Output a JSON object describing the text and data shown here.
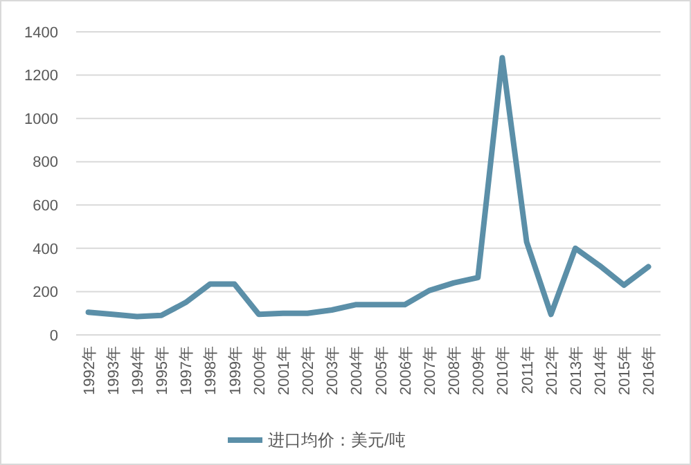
{
  "chart_data": {
    "type": "line",
    "categories": [
      "1992年",
      "1993年",
      "1994年",
      "1995年",
      "1997年",
      "1998年",
      "1999年",
      "2000年",
      "2001年",
      "2002年",
      "2003年",
      "2004年",
      "2005年",
      "2006年",
      "2007年",
      "2008年",
      "2009年",
      "2010年",
      "2011年",
      "2012年",
      "2013年",
      "2014年",
      "2015年",
      "2016年"
    ],
    "series": [
      {
        "name": "进口均价：美元/吨",
        "color": "#5b8fa8",
        "values": [
          105,
          95,
          85,
          90,
          150,
          235,
          235,
          95,
          100,
          100,
          115,
          140,
          140,
          140,
          205,
          240,
          265,
          1280,
          430,
          95,
          400,
          320,
          230,
          315
        ]
      }
    ],
    "ylim": [
      0,
      1400
    ],
    "yticks": [
      0,
      200,
      400,
      600,
      800,
      1000,
      1200,
      1400
    ],
    "grid": "y",
    "legend": "bottom",
    "marker": "none",
    "line_style": "solid"
  }
}
